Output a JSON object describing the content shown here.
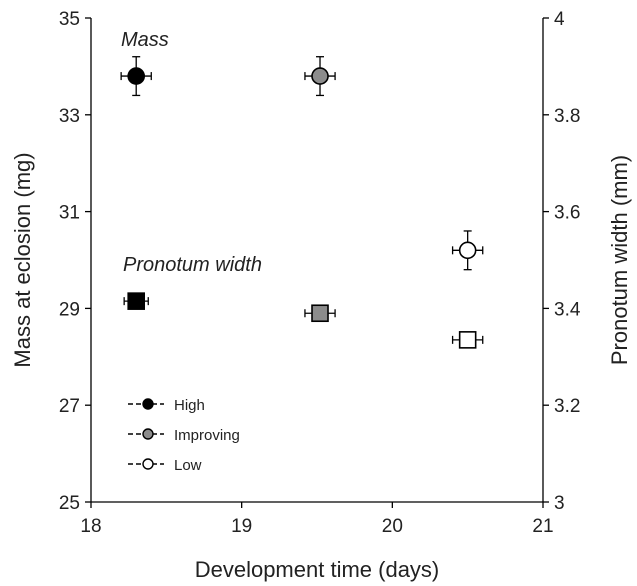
{
  "chart_data": {
    "type": "scatter",
    "xlabel": "Development time (days)",
    "ylabel": "Mass at eclosion (mg)",
    "y2label": "Pronotum width (mm)",
    "xlim": [
      18,
      21
    ],
    "ylim": [
      25,
      35
    ],
    "y2lim": [
      3,
      4
    ],
    "x_ticks": [
      "18",
      "19",
      "20",
      "21"
    ],
    "y_ticks": [
      "25",
      "27",
      "29",
      "31",
      "33",
      "35"
    ],
    "y2_ticks": [
      "3",
      "3.2",
      "3.4",
      "3.6",
      "3.8",
      "4"
    ],
    "grid": false,
    "annotations": {
      "mass": "Mass",
      "pronotum": "Pronotum width"
    },
    "legend": {
      "placement": "bottom-left",
      "entries": [
        {
          "label": "High",
          "fill": "#000000"
        },
        {
          "label": "Improving",
          "fill": "#8c8c8c"
        },
        {
          "label": "Low",
          "fill": "#ffffff"
        }
      ]
    },
    "series": [
      {
        "group": "High",
        "fill": "#000000",
        "mass": {
          "x": 18.3,
          "y": 33.8,
          "yerr": 0.4,
          "xerr": 0.1
        },
        "pronotum": {
          "x": 18.3,
          "y": 3.415,
          "yerr": 0.0,
          "xerr": 0.08
        }
      },
      {
        "group": "Improving",
        "fill": "#8c8c8c",
        "mass": {
          "x": 19.52,
          "y": 33.8,
          "yerr": 0.4,
          "xerr": 0.1
        },
        "pronotum": {
          "x": 19.52,
          "y": 3.39,
          "yerr": 0.0,
          "xerr": 0.1
        }
      },
      {
        "group": "Low",
        "fill": "#ffffff",
        "mass": {
          "x": 20.5,
          "y": 30.2,
          "yerr": 0.4,
          "xerr": 0.1
        },
        "pronotum": {
          "x": 20.5,
          "y": 3.335,
          "yerr": 0.0,
          "xerr": 0.1
        }
      }
    ]
  }
}
